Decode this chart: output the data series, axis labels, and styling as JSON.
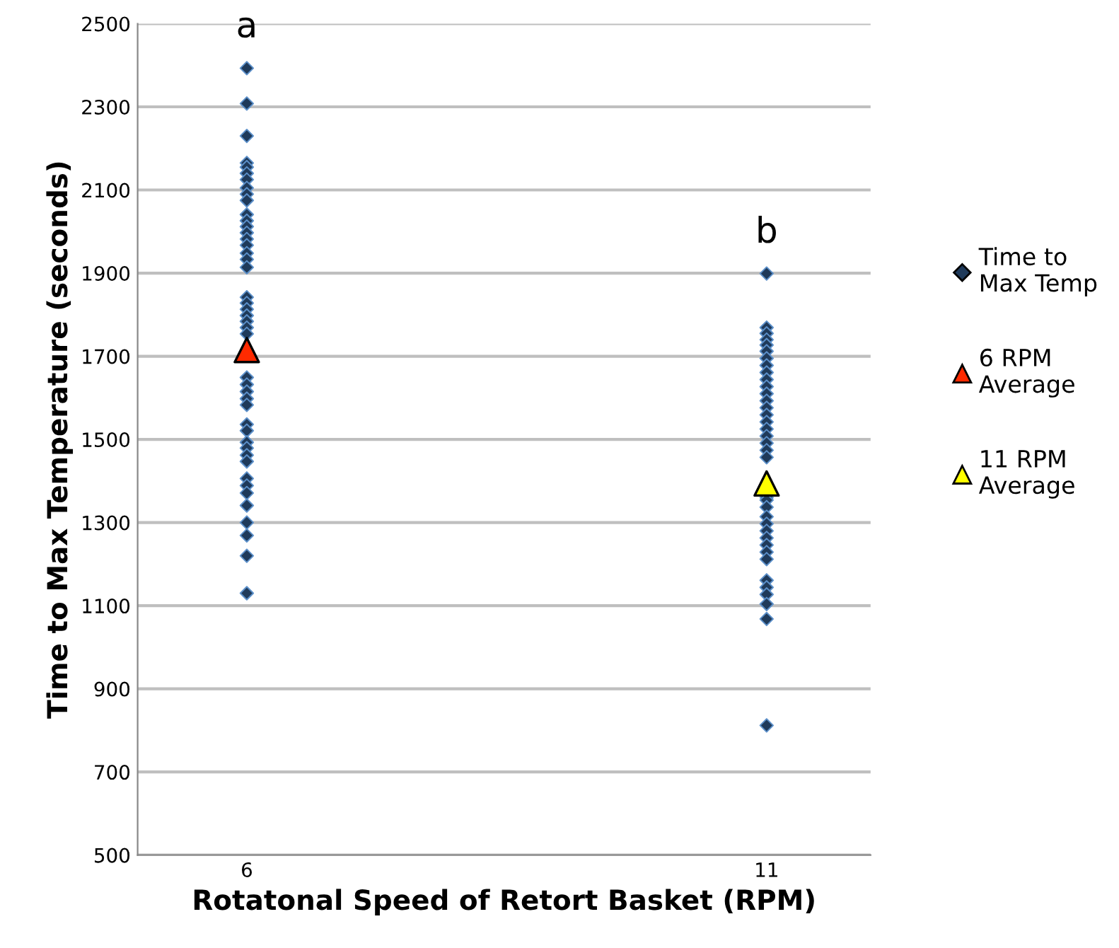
{
  "chart_data": {
    "type": "scatter",
    "xlabel": "Rotatonal Speed of Retort Basket (RPM)",
    "ylabel": "Time to Max Temperature (seconds)",
    "categories": [
      "6",
      "11"
    ],
    "ylim": [
      500,
      2500
    ],
    "yticks": [
      500,
      700,
      900,
      1100,
      1300,
      1500,
      1700,
      1900,
      2100,
      2300,
      2500
    ],
    "grid": "y",
    "legend": "right",
    "series": [
      {
        "name": "Time to Max Temp",
        "color": "#1f3a5a",
        "marker": "diamond",
        "x": [
          "6",
          "6",
          "6",
          "6",
          "6",
          "6",
          "6",
          "6",
          "6",
          "6",
          "6",
          "6",
          "6",
          "6",
          "6",
          "6",
          "6",
          "6",
          "6",
          "6",
          "6",
          "6",
          "6",
          "6",
          "6",
          "6",
          "6",
          "6",
          "6",
          "6",
          "6",
          "6",
          "6",
          "6",
          "6",
          "6",
          "6",
          "6",
          "6",
          "6",
          "6",
          "6",
          "6",
          "6",
          "6",
          "11",
          "11",
          "11",
          "11",
          "11",
          "11",
          "11",
          "11",
          "11",
          "11",
          "11",
          "11",
          "11",
          "11",
          "11",
          "11",
          "11",
          "11",
          "11",
          "11",
          "11",
          "11",
          "11",
          "11",
          "11",
          "11",
          "11",
          "11",
          "11",
          "11",
          "11",
          "11",
          "11",
          "11",
          "11",
          "11",
          "11"
        ],
        "values": [
          2393,
          2308,
          2230,
          2165,
          2155,
          2140,
          2125,
          2105,
          2090,
          2075,
          2041,
          2026,
          2012,
          1997,
          1982,
          1967,
          1948,
          1933,
          1914,
          1842,
          1828,
          1813,
          1798,
          1784,
          1769,
          1754,
          1649,
          1632,
          1615,
          1598,
          1583,
          1536,
          1521,
          1493,
          1479,
          1462,
          1447,
          1406,
          1389,
          1371,
          1341,
          1300,
          1269,
          1220,
          1130,
          1899,
          1769,
          1755,
          1740,
          1727,
          1712,
          1695,
          1678,
          1661,
          1644,
          1627,
          1610,
          1593,
          1576,
          1559,
          1542,
          1525,
          1508,
          1491,
          1474,
          1457,
          1360,
          1354,
          1337,
          1314,
          1297,
          1280,
          1263,
          1246,
          1229,
          1212,
          1161,
          1144,
          1127,
          1104,
          1068,
          812
        ]
      },
      {
        "name": "6 RPM Average",
        "color": "#ff2a00",
        "marker": "triangle",
        "x": [
          "6"
        ],
        "values": [
          1715
        ]
      },
      {
        "name": "11 RPM Average",
        "color": "#ffff00",
        "marker": "triangle",
        "x": [
          "11"
        ],
        "values": [
          1394
        ]
      }
    ],
    "annotations": [
      "a",
      "b"
    ]
  }
}
